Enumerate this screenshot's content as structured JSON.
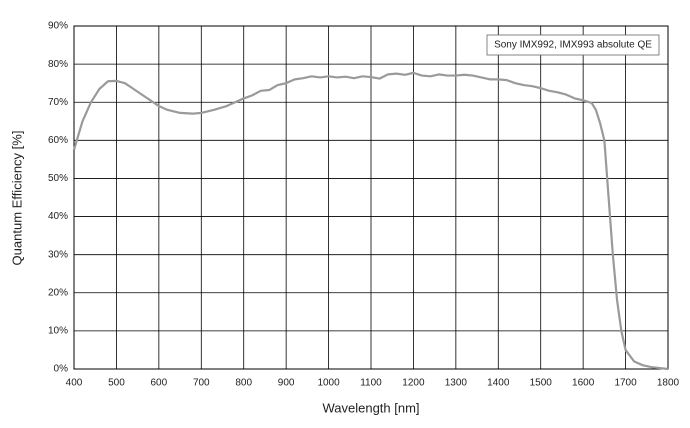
{
  "chart_data": {
    "type": "line",
    "xlabel": "Wavelength [nm]",
    "ylabel": "Quantum Efficiency [%]",
    "xlim": [
      400,
      1800
    ],
    "ylim": [
      0,
      90
    ],
    "xticks": [
      400,
      500,
      600,
      700,
      800,
      900,
      1000,
      1100,
      1200,
      1300,
      1400,
      1500,
      1600,
      1700,
      1800
    ],
    "yticks": [
      {
        "value": 0,
        "label": "0%"
      },
      {
        "value": 10,
        "label": "10%"
      },
      {
        "value": 20,
        "label": "20%"
      },
      {
        "value": 30,
        "label": "30%"
      },
      {
        "value": 40,
        "label": "40%"
      },
      {
        "value": 50,
        "label": "50%"
      },
      {
        "value": 60,
        "label": "60%"
      },
      {
        "value": 70,
        "label": "70%"
      },
      {
        "value": 80,
        "label": "80%"
      },
      {
        "value": 90,
        "label": "90%"
      }
    ],
    "grid": true,
    "legend": "upper right",
    "x": [
      400,
      420,
      440,
      460,
      480,
      500,
      520,
      540,
      560,
      580,
      600,
      620,
      650,
      680,
      700,
      730,
      760,
      800,
      820,
      840,
      860,
      880,
      900,
      920,
      940,
      960,
      980,
      1000,
      1020,
      1040,
      1060,
      1080,
      1100,
      1120,
      1140,
      1160,
      1180,
      1200,
      1220,
      1240,
      1260,
      1280,
      1300,
      1320,
      1340,
      1360,
      1380,
      1400,
      1420,
      1440,
      1460,
      1480,
      1500,
      1520,
      1540,
      1560,
      1580,
      1600,
      1620,
      1630,
      1640,
      1650,
      1660,
      1670,
      1680,
      1690,
      1700,
      1720,
      1740,
      1760,
      1800
    ],
    "series": [
      {
        "name": "Sony IMX992, IMX993 absolute QE",
        "color": "#9a9a9a",
        "values": [
          57.5,
          65,
          70,
          73.5,
          75.5,
          75.6,
          75,
          73.5,
          72,
          70.5,
          69,
          68,
          67.2,
          67,
          67.2,
          68,
          69,
          71,
          71.8,
          73,
          73.2,
          74.5,
          75,
          76,
          76.3,
          76.8,
          76.5,
          76.8,
          76.5,
          76.7,
          76.3,
          76.8,
          76.6,
          76.2,
          77.3,
          77.5,
          77.2,
          77.7,
          77,
          76.8,
          77.3,
          77,
          77,
          77.2,
          77,
          76.5,
          76,
          76,
          75.8,
          75,
          74.5,
          74.2,
          73.7,
          73,
          72.6,
          72,
          71,
          70.5,
          69.8,
          68,
          64.5,
          60,
          45,
          30,
          18,
          10,
          5,
          2,
          1,
          0.5,
          0
        ]
      }
    ]
  }
}
